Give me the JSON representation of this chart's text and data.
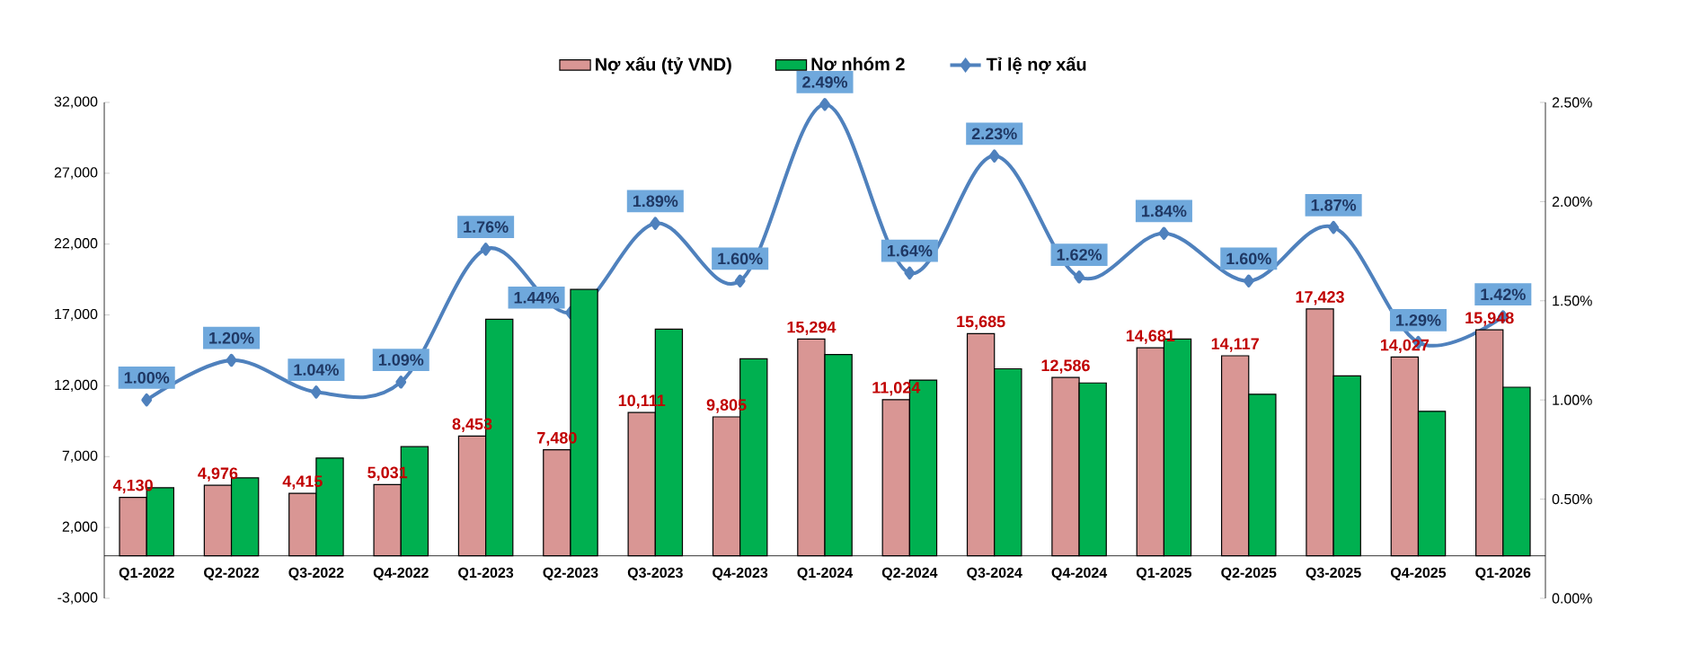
{
  "chart_data": {
    "type": "bar",
    "categories": [
      "Q1-2022",
      "Q2-2022",
      "Q3-2022",
      "Q4-2022",
      "Q1-2023",
      "Q2-2023",
      "Q3-2023",
      "Q4-2023",
      "Q1-2024",
      "Q2-2024",
      "Q3-2024",
      "Q4-2024",
      "Q1-2025",
      "Q2-2025",
      "Q3-2025",
      "Q4-2025",
      "Q1-2026"
    ],
    "series": [
      {
        "name": "Nợ xấu (tỷ VND)",
        "color": "#d99694",
        "values": [
          4130,
          4976,
          4415,
          5031,
          8453,
          7480,
          10111,
          9805,
          15294,
          11024,
          15685,
          12586,
          14681,
          14117,
          17423,
          14027,
          15948
        ],
        "value_labels": [
          "4,130",
          "4,976",
          "4,415",
          "5,031",
          "8,453",
          "7,480",
          "10,111",
          "9,805",
          "15,294",
          "11,024",
          "15,685",
          "12,586",
          "14,681",
          "14,117",
          "17,423",
          "14,027",
          "15,948"
        ]
      },
      {
        "name": "Nợ nhóm 2",
        "color": "#00b050",
        "values": [
          4800,
          5500,
          6900,
          7700,
          16700,
          18800,
          16000,
          13900,
          14200,
          12400,
          13200,
          12200,
          15300,
          11400,
          12700,
          10200,
          11900
        ]
      },
      {
        "name": "Tỉ lệ nợ xấu",
        "type": "line",
        "axis": "y2",
        "color": "#4f81bd",
        "marker": "diamond",
        "values": [
          1.0,
          1.2,
          1.04,
          1.09,
          1.76,
          1.44,
          1.89,
          1.6,
          2.49,
          1.64,
          2.23,
          1.62,
          1.84,
          1.6,
          1.87,
          1.29,
          1.42
        ],
        "value_labels": [
          "1.00%",
          "1.20%",
          "1.04%",
          "1.09%",
          "1.76%",
          "1.44%",
          "1.89%",
          "1.60%",
          "2.49%",
          "1.64%",
          "2.23%",
          "1.62%",
          "1.84%",
          "1.60%",
          "1.87%",
          "1.29%",
          "1.42%"
        ]
      }
    ],
    "ylim": [
      -3000,
      32000
    ],
    "yticks": [
      {
        "value": -3000,
        "label": "-3,000"
      },
      {
        "value": 2000,
        "label": "2,000"
      },
      {
        "value": 7000,
        "label": "7,000"
      },
      {
        "value": 12000,
        "label": "12,000"
      },
      {
        "value": 17000,
        "label": "17,000"
      },
      {
        "value": 22000,
        "label": "22,000"
      },
      {
        "value": 27000,
        "label": "27,000"
      },
      {
        "value": 32000,
        "label": "32,000"
      }
    ],
    "y2lim": [
      0,
      2.5
    ],
    "y2ticks": [
      {
        "value": 0,
        "label": "0.00%"
      },
      {
        "value": 0.5,
        "label": "0.50%"
      },
      {
        "value": 1.0,
        "label": "1.00%"
      },
      {
        "value": 1.5,
        "label": "1.50%"
      },
      {
        "value": 2.0,
        "label": "2.00%"
      },
      {
        "value": 2.5,
        "label": "2.50%"
      }
    ],
    "legend": "top"
  }
}
